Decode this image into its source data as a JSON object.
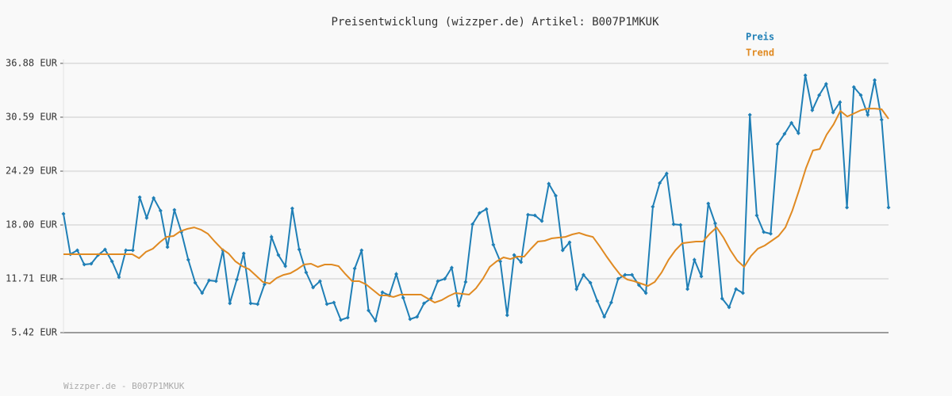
{
  "chart_data": {
    "type": "line",
    "title": "Preisentwicklung (wizzper.de) Artikel: B007P1MKUK",
    "footer": "Wizzper.de - B007P1MKUK",
    "ylim": [
      5.42,
      36.88
    ],
    "yticks": [
      {
        "value": 5.42,
        "label": "5.42 EUR"
      },
      {
        "value": 11.71,
        "label": "11.71 EUR"
      },
      {
        "value": 18.0,
        "label": "18.00 EUR"
      },
      {
        "value": 24.29,
        "label": "24.29 EUR"
      },
      {
        "value": 30.59,
        "label": "30.59 EUR"
      },
      {
        "value": 36.88,
        "label": "36.88 EUR"
      }
    ],
    "grid": true,
    "series": [
      {
        "name": "Preis",
        "color": "#1f7fb6",
        "markers": true,
        "values": [
          19.3,
          14.58,
          15.04,
          13.38,
          13.47,
          14.49,
          15.13,
          13.75,
          11.9,
          15.04,
          15.04,
          21.24,
          18.83,
          21.15,
          19.67,
          15.41,
          19.76,
          17.17,
          13.93,
          11.25,
          10.05,
          11.53,
          11.43,
          15.04,
          8.84,
          11.62,
          14.67,
          8.84,
          8.75,
          11.06,
          16.61,
          14.49,
          13.19,
          19.94,
          15.13,
          12.45,
          10.69,
          11.43,
          8.75,
          8.94,
          6.9,
          7.18,
          12.91,
          15.04,
          8.01,
          6.81,
          10.14,
          9.77,
          12.27,
          9.49,
          6.99,
          7.27,
          8.84,
          9.4,
          11.43,
          11.71,
          13.01,
          8.57,
          11.34,
          18.09,
          19.39,
          19.85,
          15.69,
          13.75,
          7.46,
          14.49,
          13.65,
          19.2,
          19.11,
          18.46,
          22.81,
          21.42,
          15.04,
          15.97,
          10.51,
          12.17,
          11.25,
          9.12,
          7.27,
          8.94,
          11.71,
          12.17,
          12.17,
          10.97,
          10.05,
          20.13,
          22.9,
          24.01,
          18.09,
          18.0,
          10.51,
          13.93,
          11.99,
          20.5,
          18.19,
          9.4,
          8.38,
          10.51,
          10.05,
          30.86,
          19.11,
          17.17,
          16.98,
          27.44,
          28.64,
          29.93,
          28.73,
          35.48,
          31.41,
          33.17,
          34.47,
          31.14,
          32.34,
          20.04,
          34.1,
          33.17,
          30.86,
          34.93,
          30.3,
          20.04
        ]
      },
      {
        "name": "Trend",
        "color": "#e08a22",
        "markers": false,
        "values": [
          14.58,
          14.58,
          14.58,
          14.58,
          14.58,
          14.58,
          14.58,
          14.58,
          14.58,
          14.58,
          14.58,
          14.12,
          14.86,
          15.23,
          15.97,
          16.61,
          16.71,
          17.26,
          17.54,
          17.72,
          17.45,
          16.98,
          16.06,
          15.23,
          14.67,
          13.75,
          13.19,
          12.82,
          12.08,
          11.34,
          11.16,
          11.8,
          12.17,
          12.36,
          12.82,
          13.38,
          13.47,
          13.1,
          13.38,
          13.38,
          13.19,
          12.27,
          11.43,
          11.43,
          11.06,
          10.42,
          9.77,
          9.77,
          9.58,
          9.86,
          9.86,
          9.86,
          9.86,
          9.4,
          8.94,
          9.21,
          9.68,
          10.05,
          9.95,
          9.86,
          10.6,
          11.71,
          13.1,
          13.75,
          14.21,
          14.02,
          14.3,
          14.3,
          15.23,
          16.06,
          16.15,
          16.43,
          16.52,
          16.61,
          16.89,
          17.08,
          16.8,
          16.61,
          15.5,
          14.3,
          13.19,
          12.17,
          11.62,
          11.43,
          11.16,
          10.88,
          11.34,
          12.45,
          13.93,
          15.04,
          15.87,
          15.97,
          16.06,
          16.06,
          16.98,
          17.72,
          16.52,
          15.04,
          13.84,
          13.1,
          14.39,
          15.23,
          15.6,
          16.15,
          16.71,
          17.72,
          19.67,
          22.07,
          24.66,
          26.7,
          26.88,
          28.55,
          29.75,
          31.32,
          30.67,
          31.04,
          31.41,
          31.6,
          31.6,
          31.51,
          30.4
        ]
      }
    ]
  }
}
